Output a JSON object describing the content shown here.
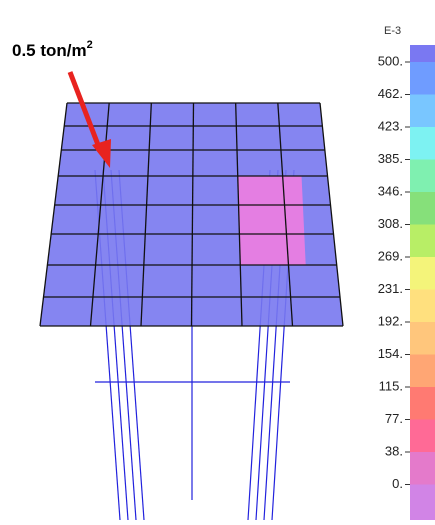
{
  "annotation": {
    "text": "0.5 ton/m",
    "superscript": "2"
  },
  "legend": {
    "exponent": "E-3",
    "labels": [
      "500.",
      "462.",
      "423.",
      "385.",
      "346.",
      "308.",
      "269.",
      "231.",
      "192.",
      "154.",
      "115.",
      "77.",
      "38.",
      "0."
    ],
    "colors": [
      "#7a78f2",
      "#6f9cff",
      "#79c6ff",
      "#7df2f2",
      "#7ff0b0",
      "#86e07a",
      "#b8ee66",
      "#f4f47a",
      "#ffe07e",
      "#ffc67c",
      "#ffa674",
      "#ff7a72",
      "#ff6a96",
      "#e47acb",
      "#d184e6"
    ]
  }
}
